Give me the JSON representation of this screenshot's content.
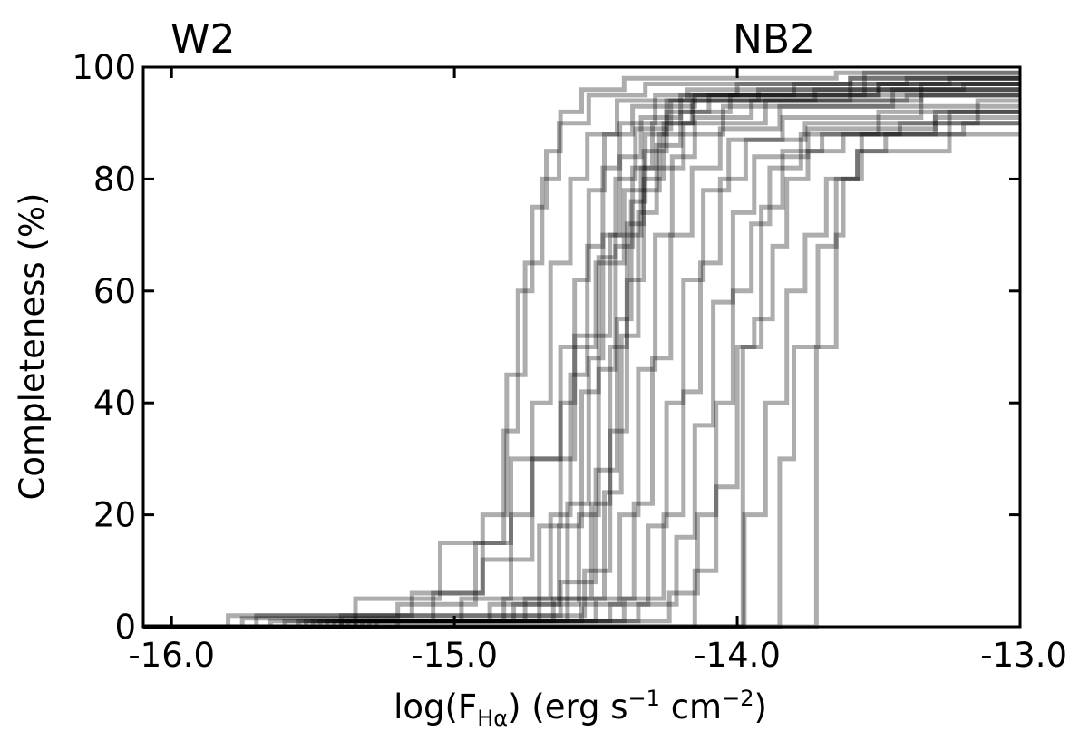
{
  "chart_data": {
    "type": "line",
    "title": "",
    "corner_labels": {
      "left": "W2",
      "right": "NB2"
    },
    "xlabel": {
      "prefix": "log(F",
      "sub": "Hα",
      "suffix": ")  (erg s",
      "sup1": "−1",
      "mid": " cm",
      "sup2": "−2",
      "end": ")"
    },
    "ylabel": "Completeness (%)",
    "xlim": [
      -16.1,
      -13.0
    ],
    "ylim": [
      0,
      100
    ],
    "xticks": [
      -16.0,
      -15.0,
      -14.0,
      -13.0
    ],
    "xtick_labels": [
      "-16.0",
      "-15.0",
      "-14.0",
      "-13.0"
    ],
    "yticks": [
      0,
      20,
      40,
      60,
      80,
      100
    ],
    "ytick_labels": [
      "0",
      "20",
      "40",
      "60",
      "80",
      "100"
    ],
    "grid": false,
    "line_color": "#000000",
    "line_opacity": 0.32,
    "series": [
      {
        "values": [
          [
            -16.1,
            0
          ],
          [
            -15.4,
            1.5
          ],
          [
            -15.0,
            4
          ],
          [
            -14.85,
            15
          ],
          [
            -14.8,
            35
          ],
          [
            -14.75,
            60
          ],
          [
            -14.7,
            75
          ],
          [
            -14.65,
            85
          ],
          [
            -14.6,
            92
          ],
          [
            -14.5,
            96
          ],
          [
            -14.3,
            98
          ],
          [
            -13.0,
            99
          ]
        ]
      },
      {
        "values": [
          [
            -16.1,
            0
          ],
          [
            -15.2,
            1
          ],
          [
            -14.95,
            6
          ],
          [
            -14.85,
            20
          ],
          [
            -14.78,
            45
          ],
          [
            -14.72,
            65
          ],
          [
            -14.66,
            80
          ],
          [
            -14.6,
            90
          ],
          [
            -14.45,
            95
          ],
          [
            -14.2,
            97
          ],
          [
            -13.0,
            98
          ]
        ]
      },
      {
        "values": [
          [
            -16.1,
            0
          ],
          [
            -15.1,
            1
          ],
          [
            -14.85,
            5
          ],
          [
            -14.75,
            20
          ],
          [
            -14.7,
            40
          ],
          [
            -14.62,
            65
          ],
          [
            -14.56,
            80
          ],
          [
            -14.5,
            88
          ],
          [
            -14.35,
            94
          ],
          [
            -14.0,
            96
          ],
          [
            -13.0,
            97
          ]
        ]
      },
      {
        "values": [
          [
            -16.1,
            0
          ],
          [
            -15.0,
            1
          ],
          [
            -14.75,
            4
          ],
          [
            -14.65,
            18
          ],
          [
            -14.6,
            40
          ],
          [
            -14.55,
            62
          ],
          [
            -14.5,
            78
          ],
          [
            -14.44,
            88
          ],
          [
            -14.3,
            93
          ],
          [
            -14.0,
            95
          ],
          [
            -13.0,
            96
          ]
        ]
      },
      {
        "values": [
          [
            -16.1,
            0
          ],
          [
            -14.95,
            1
          ],
          [
            -14.7,
            5
          ],
          [
            -14.62,
            20
          ],
          [
            -14.56,
            45
          ],
          [
            -14.5,
            68
          ],
          [
            -14.45,
            82
          ],
          [
            -14.38,
            90
          ],
          [
            -14.2,
            95
          ],
          [
            -13.8,
            97
          ],
          [
            -13.0,
            98
          ]
        ]
      },
      {
        "values": [
          [
            -16.1,
            0
          ],
          [
            -14.9,
            1
          ],
          [
            -14.68,
            4
          ],
          [
            -14.58,
            18
          ],
          [
            -14.52,
            42
          ],
          [
            -14.46,
            66
          ],
          [
            -14.4,
            80
          ],
          [
            -14.32,
            89
          ],
          [
            -14.15,
            94
          ],
          [
            -13.7,
            96
          ],
          [
            -13.0,
            97
          ]
        ]
      },
      {
        "values": [
          [
            -16.1,
            0
          ],
          [
            -14.85,
            1
          ],
          [
            -14.65,
            5
          ],
          [
            -14.55,
            22
          ],
          [
            -14.5,
            48
          ],
          [
            -14.45,
            70
          ],
          [
            -14.38,
            84
          ],
          [
            -14.3,
            91
          ],
          [
            -14.1,
            95
          ],
          [
            -13.5,
            97
          ],
          [
            -13.0,
            98
          ]
        ]
      },
      {
        "values": [
          [
            -16.1,
            0
          ],
          [
            -14.8,
            1
          ],
          [
            -14.6,
            4
          ],
          [
            -14.52,
            20
          ],
          [
            -14.46,
            46
          ],
          [
            -14.4,
            68
          ],
          [
            -14.34,
            82
          ],
          [
            -14.26,
            90
          ],
          [
            -14.05,
            94
          ],
          [
            -13.4,
            96
          ],
          [
            -13.0,
            97
          ]
        ]
      },
      {
        "values": [
          [
            -16.1,
            0
          ],
          [
            -14.75,
            1
          ],
          [
            -14.55,
            5
          ],
          [
            -14.48,
            22
          ],
          [
            -14.42,
            50
          ],
          [
            -14.36,
            72
          ],
          [
            -14.3,
            85
          ],
          [
            -14.2,
            92
          ],
          [
            -14.0,
            95
          ],
          [
            -13.0,
            97
          ]
        ]
      },
      {
        "values": [
          [
            -16.1,
            0
          ],
          [
            -14.7,
            1
          ],
          [
            -14.5,
            5
          ],
          [
            -14.44,
            24
          ],
          [
            -14.38,
            52
          ],
          [
            -14.32,
            74
          ],
          [
            -14.25,
            86
          ],
          [
            -14.15,
            92
          ],
          [
            -13.9,
            95
          ],
          [
            -13.0,
            96
          ]
        ]
      },
      {
        "values": [
          [
            -16.1,
            0
          ],
          [
            -14.65,
            1
          ],
          [
            -14.45,
            4
          ],
          [
            -14.38,
            20
          ],
          [
            -14.32,
            46
          ],
          [
            -14.26,
            70
          ],
          [
            -14.2,
            84
          ],
          [
            -14.1,
            91
          ],
          [
            -13.8,
            94
          ],
          [
            -13.0,
            95
          ]
        ]
      },
      {
        "values": [
          [
            -16.1,
            0
          ],
          [
            -14.6,
            1
          ],
          [
            -14.4,
            5
          ],
          [
            -14.33,
            22
          ],
          [
            -14.27,
            48
          ],
          [
            -14.2,
            70
          ],
          [
            -14.12,
            82
          ],
          [
            -14.0,
            89
          ],
          [
            -13.7,
            93
          ],
          [
            -13.0,
            95
          ]
        ]
      },
      {
        "values": [
          [
            -16.1,
            0
          ],
          [
            -14.55,
            1
          ],
          [
            -14.35,
            4
          ],
          [
            -14.28,
            18
          ],
          [
            -14.22,
            40
          ],
          [
            -14.16,
            62
          ],
          [
            -14.08,
            78
          ],
          [
            -13.98,
            87
          ],
          [
            -13.7,
            91
          ],
          [
            -13.0,
            93
          ]
        ]
      },
      {
        "values": [
          [
            -16.1,
            0
          ],
          [
            -14.5,
            1
          ],
          [
            -14.3,
            5
          ],
          [
            -14.22,
            20
          ],
          [
            -14.16,
            42
          ],
          [
            -14.1,
            65
          ],
          [
            -14.02,
            80
          ],
          [
            -13.92,
            87
          ],
          [
            -13.6,
            90
          ],
          [
            -13.0,
            92
          ]
        ]
      },
      {
        "values": [
          [
            -16.1,
            0
          ],
          [
            -14.45,
            1
          ],
          [
            -14.25,
            4
          ],
          [
            -14.18,
            16
          ],
          [
            -14.12,
            36
          ],
          [
            -14.05,
            58
          ],
          [
            -13.98,
            74
          ],
          [
            -13.9,
            84
          ],
          [
            -13.6,
            89
          ],
          [
            -13.0,
            91
          ]
        ]
      },
      {
        "values": [
          [
            -16.1,
            0
          ],
          [
            -14.2,
            0
          ],
          [
            -14.1,
            10
          ],
          [
            -14.05,
            25
          ],
          [
            -13.95,
            50
          ],
          [
            -13.88,
            75
          ],
          [
            -13.8,
            85
          ],
          [
            -13.6,
            88
          ],
          [
            -13.0,
            90
          ]
        ]
      },
      {
        "values": [
          [
            -16.1,
            0
          ],
          [
            -14.0,
            0
          ],
          [
            -13.95,
            20
          ],
          [
            -13.85,
            40
          ],
          [
            -13.8,
            60
          ],
          [
            -13.72,
            70
          ],
          [
            -13.65,
            80
          ],
          [
            -13.5,
            85
          ],
          [
            -13.0,
            88
          ]
        ]
      },
      {
        "values": [
          [
            -16.1,
            0
          ],
          [
            -13.98,
            0
          ],
          [
            -13.98,
            50
          ],
          [
            -13.9,
            55
          ],
          [
            -13.85,
            68
          ],
          [
            -13.8,
            80
          ],
          [
            -13.7,
            85
          ],
          [
            -13.55,
            88
          ],
          [
            -13.3,
            90
          ],
          [
            -13.0,
            92
          ]
        ]
      },
      {
        "values": [
          [
            -16.1,
            0
          ],
          [
            -13.72,
            0
          ],
          [
            -13.72,
            50
          ],
          [
            -13.65,
            50
          ],
          [
            -13.65,
            70
          ],
          [
            -13.6,
            80
          ],
          [
            -13.55,
            85
          ],
          [
            -13.4,
            88
          ],
          [
            -13.0,
            90
          ]
        ]
      },
      {
        "values": [
          [
            -16.1,
            0
          ],
          [
            -13.85,
            0
          ],
          [
            -13.85,
            30
          ],
          [
            -13.75,
            50
          ],
          [
            -13.68,
            68
          ],
          [
            -13.62,
            80
          ],
          [
            -13.5,
            88
          ],
          [
            -13.0,
            92
          ]
        ]
      },
      {
        "values": [
          [
            -16.1,
            0
          ],
          [
            -15.5,
            2
          ],
          [
            -15.2,
            5
          ],
          [
            -14.9,
            15
          ],
          [
            -14.7,
            30
          ],
          [
            -14.55,
            50
          ],
          [
            -14.45,
            65
          ],
          [
            -14.35,
            78
          ],
          [
            -14.2,
            88
          ],
          [
            -13.9,
            93
          ],
          [
            -13.0,
            95
          ]
        ]
      },
      {
        "values": [
          [
            -16.1,
            0
          ],
          [
            -15.3,
            2
          ],
          [
            -15.0,
            6
          ],
          [
            -14.8,
            12
          ],
          [
            -14.65,
            30
          ],
          [
            -14.5,
            52
          ],
          [
            -14.4,
            70
          ],
          [
            -14.28,
            82
          ],
          [
            -14.1,
            90
          ],
          [
            -13.7,
            94
          ],
          [
            -13.0,
            96
          ]
        ]
      },
      {
        "values": [
          [
            -16.1,
            0
          ],
          [
            -14.7,
            2
          ],
          [
            -14.55,
            8
          ],
          [
            -14.45,
            28
          ],
          [
            -14.4,
            55
          ],
          [
            -14.35,
            76
          ],
          [
            -14.3,
            88
          ],
          [
            -14.2,
            94
          ],
          [
            -13.0,
            98
          ]
        ]
      },
      {
        "values": [
          [
            -16.1,
            0
          ],
          [
            -14.6,
            2
          ],
          [
            -14.48,
            10
          ],
          [
            -14.42,
            35
          ],
          [
            -14.36,
            62
          ],
          [
            -14.3,
            80
          ],
          [
            -14.22,
            90
          ],
          [
            -14.1,
            95
          ],
          [
            -13.0,
            99
          ]
        ]
      },
      {
        "values": [
          [
            -16.1,
            0
          ],
          [
            -14.3,
            1
          ],
          [
            -14.18,
            6
          ],
          [
            -14.1,
            20
          ],
          [
            -14.05,
            40
          ],
          [
            -13.98,
            60
          ],
          [
            -13.92,
            72
          ],
          [
            -13.85,
            82
          ],
          [
            -13.7,
            88
          ],
          [
            -13.3,
            92
          ],
          [
            -13.0,
            94
          ]
        ]
      }
    ]
  }
}
